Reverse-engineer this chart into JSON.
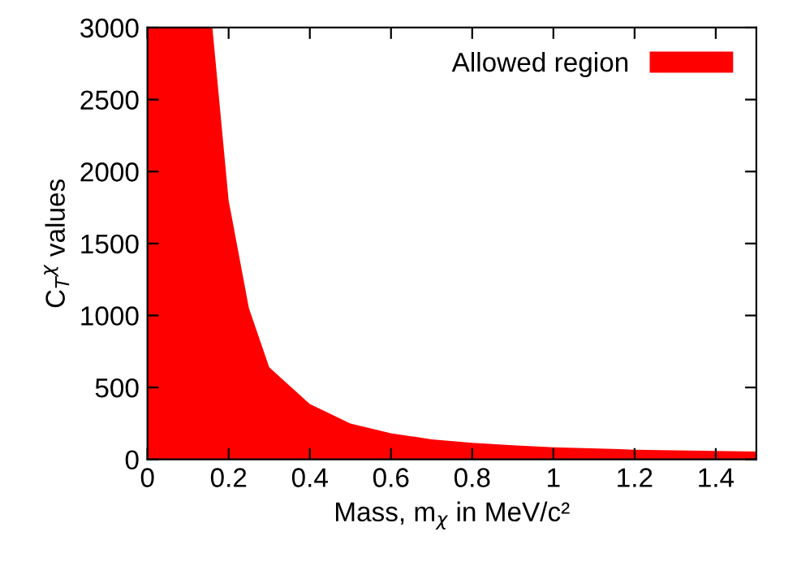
{
  "chart_data": {
    "type": "area",
    "xlabel": "Mass, m$_{χ}$ in MeV/c²",
    "ylabel": "C$_{T}$$^{χ}$ values",
    "x": [
      0,
      0.16,
      0.2,
      0.25,
      0.3,
      0.4,
      0.5,
      0.6,
      0.7,
      0.8,
      0.9,
      1.0,
      1.2,
      1.5
    ],
    "series": [
      {
        "name": "Allowed region",
        "color": "#ff0000",
        "values": [
          3000,
          3000,
          1800,
          1050,
          640,
          385,
          250,
          182,
          140,
          115,
          98,
          85,
          68,
          55
        ]
      }
    ],
    "xlim": [
      0,
      1.5
    ],
    "ylim": [
      0,
      3000
    ],
    "xticks": [
      0,
      0.2,
      0.4,
      0.6,
      0.8,
      1,
      1.2,
      1.4
    ],
    "yticks": [
      0,
      500,
      1000,
      1500,
      2000,
      2500,
      3000
    ],
    "grid": false,
    "legend": "top right"
  }
}
